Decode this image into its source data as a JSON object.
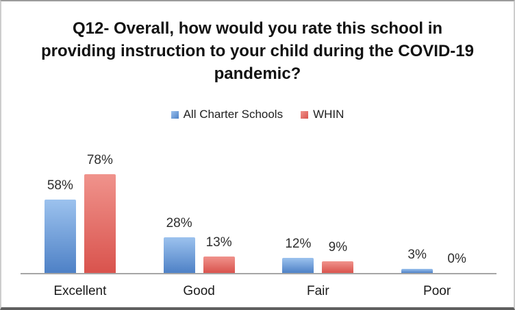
{
  "chart_data": {
    "type": "bar",
    "title": "Q12- Overall, how would you rate this school in providing instruction to your child during the COVID-19 pandemic?",
    "categories": [
      "Excellent",
      "Good",
      "Fair",
      "Poor"
    ],
    "series": [
      {
        "name": "All Charter Schools",
        "values": [
          58,
          28,
          12,
          3
        ],
        "color_top": "#9CC2EE",
        "color_bottom": "#4E81C6"
      },
      {
        "name": "WHIN",
        "values": [
          78,
          13,
          9,
          0
        ],
        "color_top": "#F0938C",
        "color_bottom": "#D9534D"
      }
    ],
    "value_suffix": "%",
    "data_labels": true,
    "ylim": [
      0,
      100
    ],
    "grid": false,
    "legend_position": "top",
    "axis_color": "#A6A6A6",
    "label_color": "#2E2E2E",
    "title_color": "#121212",
    "background_color": "#FFFFFF"
  }
}
